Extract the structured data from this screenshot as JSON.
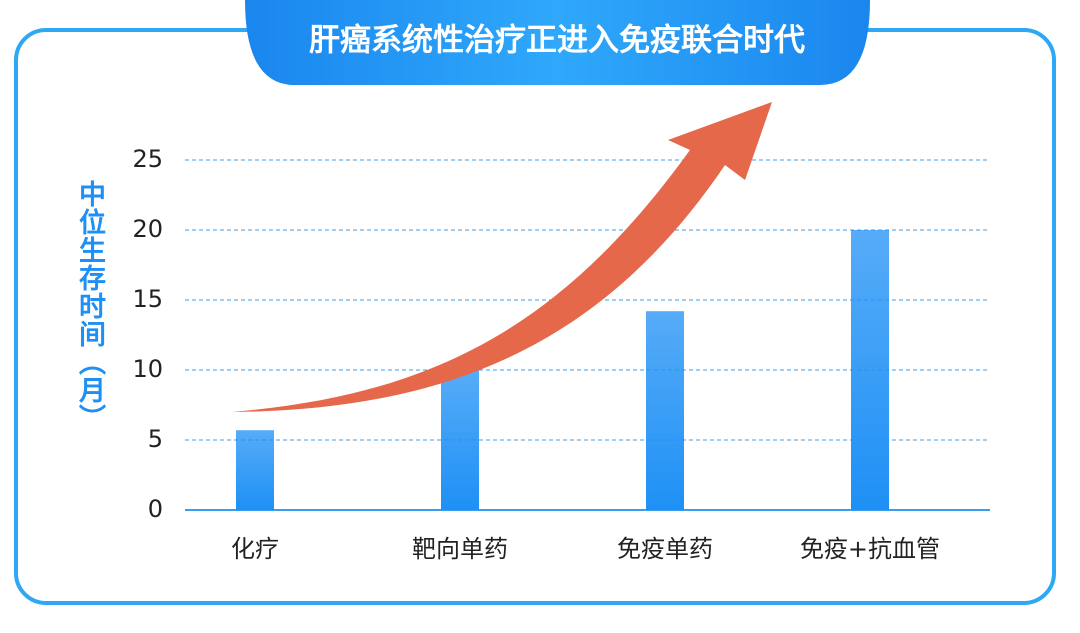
{
  "chart_data": {
    "type": "bar",
    "title": "肝癌系统性治疗正进入免疫联合时代",
    "y_label": "中位生存时间（月）",
    "categories": [
      "化疗",
      "靶向单药",
      "免疫单药",
      "免疫+抗血管"
    ],
    "values": [
      5.7,
      10,
      14.2,
      20
    ],
    "color": "#1e90f5",
    "ylim": [
      0,
      25
    ],
    "yticks": [
      0,
      5,
      10,
      15,
      20,
      25
    ],
    "grid": true
  }
}
